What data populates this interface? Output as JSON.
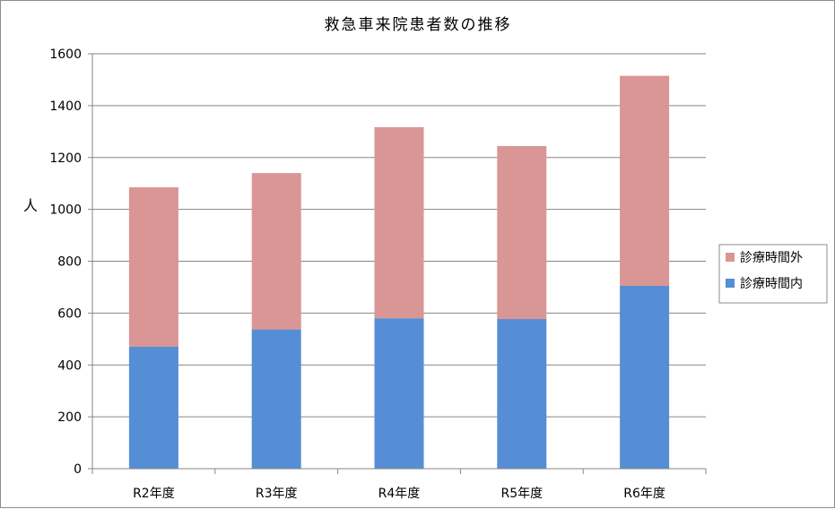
{
  "chart_data": {
    "type": "bar",
    "stacked": true,
    "title": "救急車来院患者数の推移",
    "xlabel": "",
    "ylabel": "人",
    "categories": [
      "R2年度",
      "R3年度",
      "R4年度",
      "R5年度",
      "R6年度"
    ],
    "series": [
      {
        "name": "診療時間内",
        "values": [
          470,
          537,
          580,
          577,
          705
        ],
        "color": "#558ed5"
      },
      {
        "name": "診療時間外",
        "values": [
          615,
          603,
          737,
          667,
          810
        ],
        "color": "#d99694"
      }
    ],
    "ylim": [
      0,
      1600
    ],
    "yticks": [
      "0",
      "200",
      "400",
      "600",
      "800",
      "1000",
      "1200",
      "1400",
      "1600"
    ],
    "grid": true,
    "legend_position": "right",
    "legend_order": [
      "診療時間外",
      "診療時間内"
    ]
  }
}
